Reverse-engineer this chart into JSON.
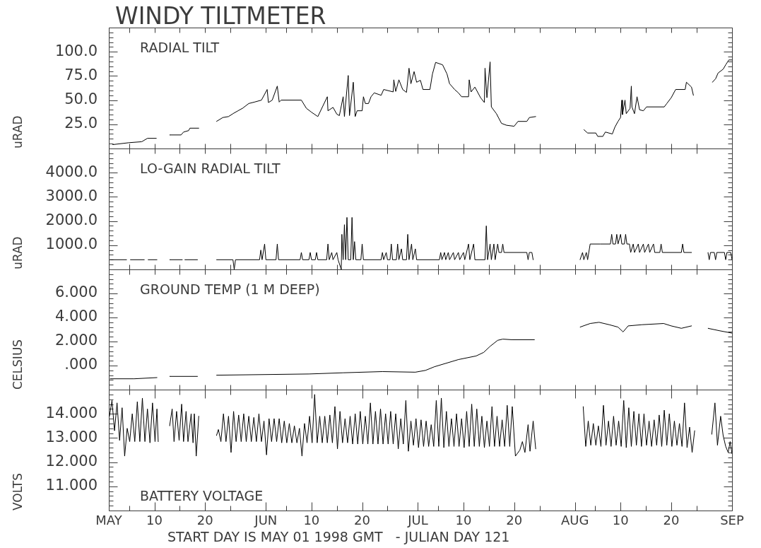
{
  "chart_data": [
    {
      "type": "line",
      "title": "WINDY TILTMETER",
      "subtitle": "RADIAL TILT",
      "ylabel": "uRAD",
      "color": "#000000",
      "tick_labels": "y",
      "xlim": [
        "1998-05-01",
        "1998-09-01"
      ],
      "xticks": [
        {
          "value": "1998-05-01",
          "label": null
        },
        {
          "value": "1998-05-05",
          "label": null
        },
        {
          "value": "1998-05-10",
          "label": null
        },
        {
          "value": "1998-05-15",
          "label": null
        },
        {
          "value": "1998-05-20",
          "label": null
        },
        {
          "value": "1998-05-25",
          "label": null
        },
        {
          "value": "1998-06-01",
          "label": null
        },
        {
          "value": "1998-06-05",
          "label": null
        },
        {
          "value": "1998-06-10",
          "label": null
        },
        {
          "value": "1998-06-15",
          "label": null
        },
        {
          "value": "1998-06-20",
          "label": null
        },
        {
          "value": "1998-06-25",
          "label": null
        },
        {
          "value": "1998-07-01",
          "label": null
        },
        {
          "value": "1998-07-05",
          "label": null
        },
        {
          "value": "1998-07-10",
          "label": null
        },
        {
          "value": "1998-07-15",
          "label": null
        },
        {
          "value": "1998-07-20",
          "label": null
        },
        {
          "value": "1998-07-25",
          "label": null
        },
        {
          "value": "1998-08-01",
          "label": null
        },
        {
          "value": "1998-08-05",
          "label": null
        },
        {
          "value": "1998-08-10",
          "label": null
        },
        {
          "value": "1998-08-15",
          "label": null
        },
        {
          "value": "1998-08-20",
          "label": null
        },
        {
          "value": "1998-08-25",
          "label": null
        },
        {
          "value": "1998-09-01",
          "label": null
        }
      ],
      "ylim": [
        0,
        125
      ],
      "yticks": [
        {
          "value": 0,
          "label": null
        },
        {
          "value": 5,
          "label": null
        },
        {
          "value": 10,
          "label": null
        },
        {
          "value": 15,
          "label": null
        },
        {
          "value": 20,
          "label": null
        },
        {
          "value": 25,
          "label": "25.0"
        },
        {
          "value": 30,
          "label": null
        },
        {
          "value": 35,
          "label": null
        },
        {
          "value": 40,
          "label": null
        },
        {
          "value": 45,
          "label": null
        },
        {
          "value": 50,
          "label": "50.0"
        },
        {
          "value": 55,
          "label": null
        },
        {
          "value": 60,
          "label": null
        },
        {
          "value": 65,
          "label": null
        },
        {
          "value": 70,
          "label": null
        },
        {
          "value": 75,
          "label": "75.0"
        },
        {
          "value": 80,
          "label": null
        },
        {
          "value": 85,
          "label": null
        },
        {
          "value": 90,
          "label": null
        },
        {
          "value": 95,
          "label": null
        },
        {
          "value": 100,
          "label": "100.0"
        },
        {
          "value": 105,
          "label": null
        },
        {
          "value": 110,
          "label": null
        },
        {
          "value": 115,
          "label": null
        },
        {
          "value": 120,
          "label": null
        },
        {
          "value": 125,
          "label": null
        }
      ],
      "x": [
        "1998-05-01T18:00",
        "1998-05-05T00:00",
        "1998-05-07T12:00",
        "1998-05-08T15:00",
        "1998-05-10T09:00",
        "1998-05-11T12:00",
        "1998-05-13T00:00",
        "1998-05-15T06:00",
        "1998-05-15T18:00",
        "1998-05-16T18:00",
        "1998-05-17T00:00",
        "1998-05-18T18:00",
        "1998-05-20T00:00",
        "1998-05-22T06:00",
        "1998-05-23T12:00",
        "1998-05-24T15:00",
        "1998-05-25T12:00",
        "1998-05-26T12:00",
        "1998-05-27T09:00",
        "1998-05-28T15:00",
        "1998-05-29T18:00",
        "1998-05-31T03:00",
        "1998-06-01T06:00",
        "1998-06-01T12:00",
        "1998-06-02T06:00",
        "1998-06-03T06:00",
        "1998-06-03T15:00",
        "1998-06-04T00:00",
        "1998-06-08T00:00",
        "1998-06-09T00:00",
        "1998-06-10T00:00",
        "1998-06-11T06:00",
        "1998-06-13T03:00",
        "1998-06-13T06:00",
        "1998-06-14T06:00",
        "1998-06-15T00:00",
        "1998-06-15T12:00",
        "1998-06-16T06:00",
        "1998-06-16T12:00",
        "1998-06-17T06:00",
        "1998-06-17T12:00",
        "1998-06-18T06:00",
        "1998-06-18T15:00",
        "1998-06-19T00:00",
        "1998-06-20T00:00",
        "1998-06-20T06:00",
        "1998-06-20T15:00",
        "1998-06-21T06:00",
        "1998-06-21T18:00",
        "1998-06-22T09:00",
        "1998-06-23T18:00",
        "1998-06-24T06:00",
        "1998-06-26T03:00",
        "1998-06-26T06:00",
        "1998-06-26T15:00",
        "1998-06-27T06:00",
        "1998-06-28T00:00",
        "1998-06-28T18:00",
        "1998-06-29T06:00",
        "1998-06-29T15:00",
        "1998-06-30T06:00",
        "1998-06-30T18:00",
        "1998-07-01T12:00",
        "1998-07-02T00:00",
        "1998-07-03T09:00",
        "1998-07-03T21:00",
        "1998-07-04T12:00",
        "1998-07-05T21:00",
        "1998-07-06T18:00",
        "1998-07-07T06:00",
        "1998-07-08T06:00",
        "1998-07-09T00:00",
        "1998-07-09T15:00",
        "1998-07-11T00:00",
        "1998-07-11T03:00",
        "1998-07-11T12:00",
        "1998-07-12T06:00",
        "1998-07-13T09:00",
        "1998-07-14T03:00",
        "1998-07-14T06:00",
        "1998-07-14T15:00",
        "1998-07-15T06:00",
        "1998-07-15T12:00",
        "1998-07-16T12:00",
        "1998-07-17T12:00",
        "1998-07-18T12:00",
        "1998-07-20T00:00",
        "1998-07-20T18:00",
        "1998-07-22T12:00",
        "1998-07-23T00:00",
        "1998-07-24T06:00",
        "1998-07-28T00:00",
        "1998-08-02T18:00",
        "1998-08-03T12:00",
        "1998-08-05T03:00",
        "1998-08-05T12:00",
        "1998-08-06T12:00",
        "1998-08-07T00:00",
        "1998-08-08T09:00",
        "1998-08-08T21:00",
        "1998-08-09T12:00",
        "1998-08-10T00:00",
        "1998-08-10T06:00",
        "1998-08-10T09:00",
        "1998-08-10T21:00",
        "1998-08-11T03:00",
        "1998-08-11T21:00",
        "1998-08-12T03:00",
        "1998-08-12T06:00",
        "1998-08-12T18:00",
        "1998-08-13T06:00",
        "1998-08-13T18:00",
        "1998-08-14T12:00",
        "1998-08-15T03:00",
        "1998-08-18T15:00",
        "1998-08-19T03:00",
        "1998-08-20T00:00",
        "1998-08-20T21:00",
        "1998-08-22T18:00",
        "1998-08-23T00:00",
        "1998-08-24T00:00",
        "1998-08-24T09:00",
        "1998-08-25T12:00",
        "1998-08-28T03:00",
        "1998-08-28T18:00",
        "1998-08-29T06:00",
        "1998-08-30T06:00",
        "1998-08-30T18:00",
        "1998-08-31T09:00",
        "1998-09-01T00:00"
      ],
      "values": [
        4,
        6,
        7,
        10.5,
        10.5,
        null,
        14,
        14,
        17,
        18.5,
        21,
        21,
        null,
        28,
        32,
        33,
        36,
        39,
        41.5,
        46.5,
        48,
        50,
        61,
        47.5,
        50,
        64.5,
        48,
        50,
        50,
        41.5,
        37.5,
        33,
        53.5,
        39,
        42.5,
        35.5,
        34,
        53.5,
        33,
        75.5,
        34,
        68.5,
        33,
        39,
        39,
        53.5,
        46.5,
        46.5,
        53.5,
        57.5,
        55,
        61,
        58.5,
        71,
        59,
        71,
        61,
        58,
        83,
        67,
        79.5,
        68.5,
        70.5,
        61,
        61,
        77,
        89,
        86.5,
        77,
        67,
        61,
        57.5,
        53.5,
        53.5,
        71,
        58.5,
        63.5,
        52.5,
        47.5,
        83,
        52.5,
        89.5,
        43,
        36,
        26,
        24,
        23,
        28,
        28,
        32,
        33,
        null,
        19.5,
        16,
        16,
        12.5,
        12.5,
        17,
        15,
        22,
        28,
        32,
        50,
        35,
        50,
        36,
        41.5,
        64.5,
        43,
        36,
        53.5,
        40,
        39,
        43,
        43,
        46.5,
        52.5,
        61,
        61,
        68.5,
        63.5,
        55,
        null,
        68.5,
        72,
        78,
        82,
        86.5,
        91.5,
        91.5
      ]
    },
    {
      "type": "line",
      "subtitle": "LO-GAIN RADIAL TILT",
      "ylabel": "uRAD",
      "color": "#000000",
      "tick_labels": "y",
      "xlim": [
        "1998-05-01",
        "1998-09-01"
      ],
      "xticks": [
        {
          "value": "1998-05-01",
          "label": null
        },
        {
          "value": "1998-05-05",
          "label": null
        },
        {
          "value": "1998-05-10",
          "label": null
        },
        {
          "value": "1998-05-15",
          "label": null
        },
        {
          "value": "1998-05-20",
          "label": null
        },
        {
          "value": "1998-05-25",
          "label": null
        },
        {
          "value": "1998-06-01",
          "label": null
        },
        {
          "value": "1998-06-05",
          "label": null
        },
        {
          "value": "1998-06-10",
          "label": null
        },
        {
          "value": "1998-06-15",
          "label": null
        },
        {
          "value": "1998-06-20",
          "label": null
        },
        {
          "value": "1998-06-25",
          "label": null
        },
        {
          "value": "1998-07-01",
          "label": null
        },
        {
          "value": "1998-07-05",
          "label": null
        },
        {
          "value": "1998-07-10",
          "label": null
        },
        {
          "value": "1998-07-15",
          "label": null
        },
        {
          "value": "1998-07-20",
          "label": null
        },
        {
          "value": "1998-07-25",
          "label": null
        },
        {
          "value": "1998-08-01",
          "label": null
        },
        {
          "value": "1998-08-05",
          "label": null
        },
        {
          "value": "1998-08-10",
          "label": null
        },
        {
          "value": "1998-08-15",
          "label": null
        },
        {
          "value": "1998-08-20",
          "label": null
        },
        {
          "value": "1998-08-25",
          "label": null
        },
        {
          "value": "1998-09-01",
          "label": null
        }
      ],
      "ylim": [
        0,
        5000
      ],
      "yticks": [
        {
          "value": 0,
          "label": null
        },
        {
          "value": 200,
          "label": null
        },
        {
          "value": 400,
          "label": null
        },
        {
          "value": 600,
          "label": null
        },
        {
          "value": 800,
          "label": null
        },
        {
          "value": 1000,
          "label": "1000.0"
        },
        {
          "value": 1200,
          "label": null
        },
        {
          "value": 1400,
          "label": null
        },
        {
          "value": 1600,
          "label": null
        },
        {
          "value": 1800,
          "label": null
        },
        {
          "value": 2000,
          "label": "2000.0"
        },
        {
          "value": 2200,
          "label": null
        },
        {
          "value": 2400,
          "label": null
        },
        {
          "value": 2600,
          "label": null
        },
        {
          "value": 2800,
          "label": null
        },
        {
          "value": 3000,
          "label": "3000.0"
        },
        {
          "value": 3200,
          "label": null
        },
        {
          "value": 3400,
          "label": null
        },
        {
          "value": 3600,
          "label": null
        },
        {
          "value": 3800,
          "label": null
        },
        {
          "value": 4000,
          "label": "4000.0"
        },
        {
          "value": 4200,
          "label": null
        },
        {
          "value": 4400,
          "label": null
        },
        {
          "value": 4600,
          "label": null
        },
        {
          "value": 4800,
          "label": null
        },
        {
          "value": 5000,
          "label": null
        }
      ],
      "x": [
        "1998-05-01T06:00",
        "1998-05-04T12:00",
        "1998-05-04T18:00",
        "1998-05-05T06:00",
        "1998-05-08T00:00",
        "1998-05-08T06:00",
        "1998-05-08T18:00",
        "1998-05-10T12:00",
        "1998-05-11T12:00",
        "1998-05-13T00:00",
        "1998-05-15T12:00",
        "1998-05-15T18:00",
        "1998-05-16T00:00",
        "1998-05-18T12:00",
        "1998-05-20T00:00",
        "1998-05-22T06:00",
        "1998-05-25T12:00",
        "1998-05-25T18:00",
        "1998-05-26T00:00",
        "1998-05-30T18:00",
        "1998-05-31T00:00",
        "1998-05-31T06:00",
        "1998-05-31T18:00",
        "1998-06-01T00:00",
        "1998-06-03T00:00",
        "1998-06-03T06:00",
        "1998-06-03T12:00",
        "1998-06-07T18:00",
        "1998-06-08T00:00",
        "1998-06-08T06:00",
        "1998-06-09T12:00",
        "1998-06-09T18:00",
        "1998-06-10T00:00",
        "1998-06-10T18:00",
        "1998-06-11T00:00",
        "1998-06-11T06:00",
        "1998-06-13T00:00",
        "1998-06-13T06:00",
        "1998-06-13T12:00",
        "1998-06-14T00:00",
        "1998-06-14T06:00",
        "1998-06-15T00:00",
        "1998-06-15T06:00",
        "1998-06-15T21:00",
        "1998-06-16T00:00",
        "1998-06-16T06:00",
        "1998-06-16T12:00",
        "1998-06-16T18:00",
        "1998-06-17T00:00",
        "1998-06-17T06:00",
        "1998-06-17T18:00",
        "1998-06-18T00:00",
        "1998-06-18T06:00",
        "1998-06-18T12:00",
        "1998-06-18T18:00",
        "1998-06-19T18:00",
        "1998-06-20T00:00",
        "1998-06-20T06:00",
        "1998-06-23T18:00",
        "1998-06-24T00:00",
        "1998-06-24T06:00",
        "1998-06-24T18:00",
        "1998-06-25T00:00",
        "1998-06-25T12:00",
        "1998-06-25T18:00",
        "1998-06-26T00:00",
        "1998-06-26T18:00",
        "1998-06-27T00:00",
        "1998-06-27T06:00",
        "1998-06-27T18:00",
        "1998-06-28T00:00",
        "1998-06-28T18:00",
        "1998-06-29T00:00",
        "1998-06-29T06:00",
        "1998-06-29T18:00",
        "1998-06-30T00:00",
        "1998-06-30T12:00",
        "1998-06-30T18:00",
        "1998-07-05T06:00",
        "1998-07-05T12:00",
        "1998-07-05T18:00",
        "1998-07-06T06:00",
        "1998-07-06T12:00",
        "1998-07-07T00:00",
        "1998-07-07T06:00",
        "1998-07-08T00:00",
        "1998-07-08T06:00",
        "1998-07-09T00:00",
        "1998-07-09T06:00",
        "1998-07-10T00:00",
        "1998-07-10T06:00",
        "1998-07-11T00:00",
        "1998-07-11T06:00",
        "1998-07-12T00:00",
        "1998-07-12T06:00",
        "1998-07-14T06:00",
        "1998-07-14T12:00",
        "1998-07-14T18:00",
        "1998-07-15T06:00",
        "1998-07-15T12:00",
        "1998-07-16T00:00",
        "1998-07-16T06:00",
        "1998-07-16T18:00",
        "1998-07-17T00:00",
        "1998-07-17T12:00",
        "1998-07-17T18:00",
        "1998-07-18T00:00",
        "1998-07-22T12:00",
        "1998-07-22T18:00",
        "1998-07-23T00:00",
        "1998-07-23T12:00",
        "1998-07-23T18:00",
        "1998-07-26T00:00",
        "1998-08-02T00:00",
        "1998-08-02T12:00",
        "1998-08-02T18:00",
        "1998-08-03T06:00",
        "1998-08-03T12:00",
        "1998-08-04T00:00",
        "1998-08-06T00:00",
        "1998-08-08T00:00",
        "1998-08-08T06:00",
        "1998-08-08T12:00",
        "1998-08-09T00:00",
        "1998-08-09T06:00",
        "1998-08-09T12:00",
        "1998-08-10T00:00",
        "1998-08-10T06:00",
        "1998-08-10T18:00",
        "1998-08-11T00:00",
        "1998-08-11T06:00",
        "1998-08-11T18:00",
        "1998-08-12T00:00",
        "1998-08-12T12:00",
        "1998-08-12T18:00",
        "1998-08-13T12:00",
        "1998-08-13T18:00",
        "1998-08-14T12:00",
        "1998-08-14T18:00",
        "1998-08-15T12:00",
        "1998-08-15T18:00",
        "1998-08-16T12:00",
        "1998-08-16T18:00",
        "1998-08-17T18:00",
        "1998-08-18T00:00",
        "1998-08-18T06:00",
        "1998-08-22T00:00",
        "1998-08-22T06:00",
        "1998-08-22T12:00",
        "1998-08-24T00:00",
        "1998-08-25T00:00",
        "1998-08-27T06:00",
        "1998-08-27T12:00",
        "1998-08-27T18:00",
        "1998-08-28T12:00",
        "1998-08-28T18:00",
        "1998-08-29T00:00",
        "1998-08-30T12:00",
        "1998-08-30T18:00",
        "1998-08-31T00:00",
        "1998-08-31T18:00",
        "1998-09-01T00:00"
      ],
      "values": [
        400,
        400,
        null,
        400,
        400,
        null,
        400,
        400,
        null,
        400,
        400,
        null,
        400,
        400,
        null,
        400,
        400,
        0,
        400,
        400,
        800,
        400,
        1050,
        400,
        400,
        1050,
        400,
        400,
        700,
        400,
        400,
        700,
        400,
        400,
        700,
        400,
        400,
        1050,
        400,
        700,
        400,
        700,
        400,
        0,
        1450,
        400,
        1850,
        400,
        2150,
        400,
        400,
        2150,
        400,
        1150,
        400,
        400,
        1050,
        400,
        400,
        700,
        400,
        700,
        400,
        400,
        1050,
        400,
        400,
        1050,
        400,
        850,
        400,
        400,
        1450,
        400,
        1050,
        400,
        850,
        400,
        400,
        700,
        400,
        700,
        400,
        700,
        400,
        700,
        400,
        700,
        400,
        700,
        400,
        1050,
        400,
        1050,
        400,
        400,
        1800,
        400,
        1050,
        400,
        1050,
        400,
        1050,
        700,
        700,
        1050,
        700,
        700,
        400,
        700,
        700,
        400,
        null,
        400,
        700,
        400,
        700,
        400,
        1050,
        1050,
        1050,
        1450,
        1050,
        1050,
        1450,
        1050,
        1450,
        1050,
        1050,
        1450,
        1050,
        1050,
        700,
        1050,
        700,
        1050,
        700,
        1050,
        700,
        1050,
        700,
        1050,
        700,
        700,
        1050,
        700,
        700,
        1050,
        700,
        700,
        null,
        700,
        400,
        700,
        700,
        400,
        700,
        700,
        400,
        700,
        700,
        400
      ]
    },
    {
      "type": "line",
      "subtitle": "GROUND TEMP (1 M DEEP)",
      "ylabel": "CELSIUS",
      "color": "#000000",
      "tick_labels": "y",
      "xlim": [
        "1998-05-01",
        "1998-09-01"
      ],
      "xticks": [
        {
          "value": "1998-05-01",
          "label": null
        },
        {
          "value": "1998-05-05",
          "label": null
        },
        {
          "value": "1998-05-10",
          "label": null
        },
        {
          "value": "1998-05-15",
          "label": null
        },
        {
          "value": "1998-05-20",
          "label": null
        },
        {
          "value": "1998-05-25",
          "label": null
        },
        {
          "value": "1998-06-01",
          "label": null
        },
        {
          "value": "1998-06-05",
          "label": null
        },
        {
          "value": "1998-06-10",
          "label": null
        },
        {
          "value": "1998-06-15",
          "label": null
        },
        {
          "value": "1998-06-20",
          "label": null
        },
        {
          "value": "1998-06-25",
          "label": null
        },
        {
          "value": "1998-07-01",
          "label": null
        },
        {
          "value": "1998-07-05",
          "label": null
        },
        {
          "value": "1998-07-10",
          "label": null
        },
        {
          "value": "1998-07-15",
          "label": null
        },
        {
          "value": "1998-07-20",
          "label": null
        },
        {
          "value": "1998-07-25",
          "label": null
        },
        {
          "value": "1998-08-01",
          "label": null
        },
        {
          "value": "1998-08-05",
          "label": null
        },
        {
          "value": "1998-08-10",
          "label": null
        },
        {
          "value": "1998-08-15",
          "label": null
        },
        {
          "value": "1998-08-20",
          "label": null
        },
        {
          "value": "1998-08-25",
          "label": null
        },
        {
          "value": "1998-09-01",
          "label": null
        }
      ],
      "ylim": [
        -2,
        8
      ],
      "yticks": [
        {
          "value": -2.0,
          "label": null
        },
        {
          "value": -1.6,
          "label": null
        },
        {
          "value": -1.2,
          "label": null
        },
        {
          "value": -0.8,
          "label": null
        },
        {
          "value": -0.4,
          "label": null
        },
        {
          "value": 0,
          "label": ".000"
        },
        {
          "value": 0.4,
          "label": null
        },
        {
          "value": 0.8,
          "label": null
        },
        {
          "value": 1.2,
          "label": null
        },
        {
          "value": 1.6,
          "label": null
        },
        {
          "value": 2.0,
          "label": "2.000"
        },
        {
          "value": 2.4,
          "label": null
        },
        {
          "value": 2.8,
          "label": null
        },
        {
          "value": 3.2,
          "label": null
        },
        {
          "value": 3.6,
          "label": null
        },
        {
          "value": 4.0,
          "label": "4.000"
        },
        {
          "value": 4.4,
          "label": null
        },
        {
          "value": 4.8,
          "label": null
        },
        {
          "value": 5.2,
          "label": null
        },
        {
          "value": 5.6,
          "label": null
        },
        {
          "value": 6.0,
          "label": "6.000"
        },
        {
          "value": 6.4,
          "label": null
        },
        {
          "value": 6.8,
          "label": null
        },
        {
          "value": 7.2,
          "label": null
        },
        {
          "value": 7.6,
          "label": null
        },
        {
          "value": 8.0,
          "label": null
        }
      ],
      "x": [
        "1998-05-01T06:00",
        "1998-05-06T00:00",
        "1998-05-10T12:00",
        "1998-05-11T12:00",
        "1998-05-13T00:00",
        "1998-05-18T12:00",
        "1998-05-20T00:00",
        "1998-05-22T06:00",
        "1998-06-09T12:00",
        "1998-06-16T06:00",
        "1998-06-24T00:00",
        "1998-06-30T12:00",
        "1998-07-02T12:00",
        "1998-07-04T06:00",
        "1998-07-09T00:00",
        "1998-07-12T12:00",
        "1998-07-14T00:00",
        "1998-07-15T06:00",
        "1998-07-16T18:00",
        "1998-07-17T18:00",
        "1998-07-19T12:00",
        "1998-07-24T00:00",
        "1998-07-28T00:00",
        "1998-08-02T00:00",
        "1998-08-04T00:00",
        "1998-08-05T18:00",
        "1998-08-07T18:00",
        "1998-08-09T12:00",
        "1998-08-10T12:00",
        "1998-08-11T12:00",
        "1998-08-14T06:00",
        "1998-08-18T12:00",
        "1998-08-20T00:00",
        "1998-08-22T00:00",
        "1998-08-24T00:00",
        "1998-08-25T12:00",
        "1998-08-27T06:00",
        "1998-08-29T12:00",
        "1998-09-01T00:00"
      ],
      "values": [
        -1.1,
        -1.1,
        -1.0,
        null,
        -0.9,
        -0.9,
        null,
        -0.8,
        -0.7,
        -0.6,
        -0.5,
        -0.55,
        -0.4,
        -0.1,
        0.5,
        0.8,
        1.1,
        1.6,
        2.1,
        2.2,
        2.15,
        2.15,
        null,
        3.2,
        3.5,
        3.6,
        3.4,
        3.2,
        2.8,
        3.3,
        3.4,
        3.5,
        3.3,
        3.1,
        3.3,
        null,
        3.1,
        2.9,
        2.7
      ]
    },
    {
      "type": "line",
      "subtitle": "BATTERY VOLTAGE",
      "ylabel": "VOLTS",
      "xlabel": "START DAY IS MAY 01 1998 GMT   - JULIAN DAY 121",
      "color": "#000000",
      "xlim": [
        "1998-05-01",
        "1998-09-01"
      ],
      "xticks": [
        {
          "value": "1998-05-01",
          "label": "MAY"
        },
        {
          "value": "1998-05-05",
          "label": null
        },
        {
          "value": "1998-05-10",
          "label": "10"
        },
        {
          "value": "1998-05-15",
          "label": null
        },
        {
          "value": "1998-05-20",
          "label": "20"
        },
        {
          "value": "1998-05-25",
          "label": null
        },
        {
          "value": "1998-06-01",
          "label": "JUN"
        },
        {
          "value": "1998-06-05",
          "label": null
        },
        {
          "value": "1998-06-10",
          "label": "10"
        },
        {
          "value": "1998-06-15",
          "label": null
        },
        {
          "value": "1998-06-20",
          "label": "20"
        },
        {
          "value": "1998-06-25",
          "label": null
        },
        {
          "value": "1998-07-01",
          "label": "JUL"
        },
        {
          "value": "1998-07-05",
          "label": null
        },
        {
          "value": "1998-07-10",
          "label": "10"
        },
        {
          "value": "1998-07-15",
          "label": null
        },
        {
          "value": "1998-07-20",
          "label": "20"
        },
        {
          "value": "1998-07-25",
          "label": null
        },
        {
          "value": "1998-08-01",
          "label": "AUG"
        },
        {
          "value": "1998-08-05",
          "label": null
        },
        {
          "value": "1998-08-10",
          "label": "10"
        },
        {
          "value": "1998-08-15",
          "label": null
        },
        {
          "value": "1998-08-20",
          "label": "20"
        },
        {
          "value": "1998-08-25",
          "label": null
        },
        {
          "value": "1998-09-01",
          "label": "SEP"
        }
      ],
      "ylim": [
        10,
        15
      ],
      "yticks": [
        {
          "value": 10.0,
          "label": null
        },
        {
          "value": 10.2,
          "label": null
        },
        {
          "value": 10.4,
          "label": null
        },
        {
          "value": 10.6,
          "label": null
        },
        {
          "value": 10.8,
          "label": null
        },
        {
          "value": 11.0,
          "label": "11.000"
        },
        {
          "value": 11.2,
          "label": null
        },
        {
          "value": 11.4,
          "label": null
        },
        {
          "value": 11.6,
          "label": null
        },
        {
          "value": 11.8,
          "label": null
        },
        {
          "value": 12.0,
          "label": "12.000"
        },
        {
          "value": 12.2,
          "label": null
        },
        {
          "value": 12.4,
          "label": null
        },
        {
          "value": 12.6,
          "label": null
        },
        {
          "value": 12.8,
          "label": null
        },
        {
          "value": 13.0,
          "label": "13.000"
        },
        {
          "value": 13.2,
          "label": null
        },
        {
          "value": 13.4,
          "label": null
        },
        {
          "value": 13.6,
          "label": null
        },
        {
          "value": 13.8,
          "label": null
        },
        {
          "value": 14.0,
          "label": "14.000"
        },
        {
          "value": 14.2,
          "label": null
        },
        {
          "value": 14.4,
          "label": null
        },
        {
          "value": 14.6,
          "label": null
        },
        {
          "value": 14.8,
          "label": null
        },
        {
          "value": 15.0,
          "label": null
        }
      ],
      "x": [
        "1998-05-01T03:00",
        "1998-05-01T15:00",
        "1998-05-02T03:00",
        "1998-05-02T15:00",
        "1998-05-03T03:00",
        "1998-05-03T15:00",
        "1998-05-04T03:00",
        "1998-05-04T15:00",
        "1998-05-05T03:00",
        "1998-05-05T15:00",
        "1998-05-06T03:00",
        "1998-05-06T15:00",
        "1998-05-07T03:00",
        "1998-05-07T15:00",
        "1998-05-08T03:00",
        "1998-05-08T15:00",
        "1998-05-09T03:00",
        "1998-05-09T15:00",
        "1998-05-10T03:00",
        "1998-05-10T12:00",
        "1998-05-10T18:00",
        "1998-05-11T12:00",
        "1998-05-13T00:00",
        "1998-05-13T12:00",
        "1998-05-13T21:00",
        "1998-05-14T09:00",
        "1998-05-14T21:00",
        "1998-05-15T09:00",
        "1998-05-15T18:00",
        "1998-05-16T06:00",
        "1998-05-16T15:00",
        "1998-05-17T06:00",
        "1998-05-17T15:00",
        "1998-05-17T21:00",
        "1998-05-18T06:00",
        "1998-05-18T18:00",
        "1998-05-20T00:00",
        "1998-05-22T06:00",
        "1998-05-22T15:00",
        "1998-05-23T03:00",
        "1998-05-23T15:00",
        "1998-05-24T03:00",
        "1998-05-24T15:00",
        "1998-05-25T03:00",
        "1998-05-25T15:00",
        "1998-05-26T03:00",
        "1998-05-26T15:00",
        "1998-05-27T03:00",
        "1998-05-27T15:00",
        "1998-05-28T03:00",
        "1998-05-28T15:00",
        "1998-05-29T03:00",
        "1998-05-29T15:00",
        "1998-05-30T03:00",
        "1998-05-30T15:00",
        "1998-05-31T03:00",
        "1998-05-31T15:00",
        "1998-06-01T03:00",
        "1998-06-01T15:00",
        "1998-06-02T03:00",
        "1998-06-02T15:00",
        "1998-06-03T03:00",
        "1998-06-03T15:00",
        "1998-06-04T03:00",
        "1998-06-04T15:00",
        "1998-06-05T03:00",
        "1998-06-05T15:00",
        "1998-06-06T03:00",
        "1998-06-06T15:00",
        "1998-06-07T03:00",
        "1998-06-07T15:00",
        "1998-06-08T03:00",
        "1998-06-08T15:00",
        "1998-06-09T03:00",
        "1998-06-09T15:00",
        "1998-06-10T03:00",
        "1998-06-10T15:00",
        "1998-06-11T03:00",
        "1998-06-11T15:00",
        "1998-06-12T03:00",
        "1998-06-12T15:00",
        "1998-06-13T03:00",
        "1998-06-13T15:00",
        "1998-06-14T03:00",
        "1998-06-14T15:00",
        "1998-06-15T03:00",
        "1998-06-15T15:00",
        "1998-06-16T03:00",
        "1998-06-16T15:00",
        "1998-06-17T03:00",
        "1998-06-17T15:00",
        "1998-06-18T03:00",
        "1998-06-18T15:00",
        "1998-06-19T03:00",
        "1998-06-19T15:00",
        "1998-06-20T03:00",
        "1998-06-20T15:00",
        "1998-06-21T03:00",
        "1998-06-21T15:00",
        "1998-06-22T03:00",
        "1998-06-22T15:00",
        "1998-06-23T03:00",
        "1998-06-23T15:00",
        "1998-06-24T03:00",
        "1998-06-24T15:00",
        "1998-06-25T03:00",
        "1998-06-25T15:00",
        "1998-06-26T03:00",
        "1998-06-26T15:00",
        "1998-06-27T03:00",
        "1998-06-27T15:00",
        "1998-06-28T03:00",
        "1998-06-28T15:00",
        "1998-06-29T03:00",
        "1998-06-29T15:00",
        "1998-06-30T03:00",
        "1998-06-30T15:00",
        "1998-07-01T03:00",
        "1998-07-01T15:00",
        "1998-07-02T03:00",
        "1998-07-02T15:00",
        "1998-07-03T03:00",
        "1998-07-03T15:00",
        "1998-07-04T03:00",
        "1998-07-04T15:00",
        "1998-07-05T03:00",
        "1998-07-05T15:00",
        "1998-07-06T03:00",
        "1998-07-06T15:00",
        "1998-07-07T03:00",
        "1998-07-07T15:00",
        "1998-07-08T03:00",
        "1998-07-08T15:00",
        "1998-07-09T03:00",
        "1998-07-09T15:00",
        "1998-07-10T03:00",
        "1998-07-10T15:00",
        "1998-07-11T03:00",
        "1998-07-11T15:00",
        "1998-07-12T03:00",
        "1998-07-12T15:00",
        "1998-07-13T03:00",
        "1998-07-13T15:00",
        "1998-07-14T03:00",
        "1998-07-14T15:00",
        "1998-07-15T03:00",
        "1998-07-15T15:00",
        "1998-07-16T03:00",
        "1998-07-16T15:00",
        "1998-07-17T03:00",
        "1998-07-17T15:00",
        "1998-07-18T03:00",
        "1998-07-18T15:00",
        "1998-07-19T03:00",
        "1998-07-19T15:00",
        "1998-07-20T06:00",
        "1998-07-21T03:00",
        "1998-07-21T15:00",
        "1998-07-22T03:00",
        "1998-07-22T18:00",
        "1998-07-23T03:00",
        "1998-07-23T18:00",
        "1998-07-24T06:00",
        "1998-07-28T00:00",
        "1998-08-02T15:00",
        "1998-08-03T03:00",
        "1998-08-03T15:00",
        "1998-08-04T03:00",
        "1998-08-04T15:00",
        "1998-08-05T03:00",
        "1998-08-05T15:00",
        "1998-08-06T03:00",
        "1998-08-06T15:00",
        "1998-08-07T03:00",
        "1998-08-07T15:00",
        "1998-08-08T03:00",
        "1998-08-08T15:00",
        "1998-08-09T03:00",
        "1998-08-09T15:00",
        "1998-08-10T03:00",
        "1998-08-10T15:00",
        "1998-08-11T03:00",
        "1998-08-11T15:00",
        "1998-08-12T03:00",
        "1998-08-12T15:00",
        "1998-08-13T03:00",
        "1998-08-13T15:00",
        "1998-08-14T03:00",
        "1998-08-14T15:00",
        "1998-08-15T03:00",
        "1998-08-15T15:00",
        "1998-08-16T03:00",
        "1998-08-16T15:00",
        "1998-08-17T03:00",
        "1998-08-17T15:00",
        "1998-08-18T03:00",
        "1998-08-18T15:00",
        "1998-08-19T03:00",
        "1998-08-19T15:00",
        "1998-08-20T03:00",
        "1998-08-20T15:00",
        "1998-08-21T03:00",
        "1998-08-21T15:00",
        "1998-08-22T03:00",
        "1998-08-22T15:00",
        "1998-08-23T03:00",
        "1998-08-23T15:00",
        "1998-08-24T03:00",
        "1998-08-24T15:00",
        "1998-08-25T12:00",
        "1998-08-28T00:00",
        "1998-08-28T15:00",
        "1998-08-29T03:00",
        "1998-08-29T18:00",
        "1998-08-30T06:00",
        "1998-08-30T18:00",
        "1998-08-31T06:00",
        "1998-08-31T15:00",
        "1998-09-01T00:00"
      ],
      "values": [
        13.9,
        14.55,
        13.3,
        14.45,
        12.9,
        14.25,
        12.25,
        13.4,
        12.85,
        14.0,
        12.85,
        14.5,
        12.85,
        14.65,
        12.85,
        14.2,
        12.8,
        14.45,
        12.85,
        14.2,
        12.85,
        null,
        13.5,
        14.2,
        12.85,
        14.1,
        12.9,
        14.4,
        12.85,
        14.1,
        12.85,
        14.0,
        12.8,
        14.0,
        12.25,
        13.9,
        null,
        13.1,
        13.35,
        12.85,
        14.0,
        12.85,
        13.9,
        12.4,
        14.1,
        12.85,
        13.95,
        12.85,
        14.0,
        12.85,
        13.9,
        12.85,
        13.85,
        12.85,
        14.0,
        12.85,
        13.7,
        12.3,
        13.8,
        12.85,
        13.8,
        12.85,
        13.8,
        12.8,
        13.7,
        12.8,
        13.6,
        12.8,
        13.5,
        12.8,
        13.4,
        12.25,
        13.6,
        12.8,
        13.9,
        12.8,
        14.8,
        12.8,
        13.9,
        12.8,
        13.9,
        12.8,
        13.95,
        12.8,
        14.3,
        12.55,
        14.1,
        12.8,
        13.8,
        12.8,
        13.9,
        12.75,
        14.0,
        12.75,
        14.1,
        12.75,
        13.9,
        12.75,
        14.45,
        12.75,
        14.1,
        12.75,
        14.2,
        12.75,
        14.0,
        12.75,
        14.1,
        12.75,
        14.0,
        12.55,
        13.8,
        12.75,
        14.55,
        12.45,
        13.7,
        12.7,
        13.8,
        12.6,
        13.75,
        12.65,
        13.7,
        12.65,
        13.55,
        12.65,
        14.55,
        12.65,
        14.65,
        12.6,
        14.1,
        12.65,
        13.8,
        12.65,
        14.0,
        12.65,
        13.8,
        12.6,
        14.1,
        12.65,
        14.4,
        12.65,
        14.2,
        12.65,
        13.9,
        12.6,
        13.7,
        12.65,
        14.3,
        12.65,
        13.9,
        12.65,
        13.75,
        12.65,
        14.35,
        12.65,
        14.3,
        12.25,
        12.5,
        12.85,
        12.4,
        13.55,
        12.45,
        13.7,
        12.55,
        null,
        14.3,
        12.65,
        13.7,
        12.7,
        13.6,
        12.7,
        13.5,
        12.65,
        14.35,
        12.7,
        13.7,
        12.65,
        13.9,
        12.7,
        13.7,
        12.65,
        14.55,
        12.6,
        14.25,
        12.65,
        14.1,
        12.7,
        14.0,
        12.65,
        14.0,
        12.7,
        13.7,
        12.65,
        13.75,
        12.7,
        13.95,
        12.65,
        14.15,
        12.7,
        14.0,
        12.65,
        13.7,
        12.7,
        13.6,
        12.65,
        14.45,
        12.6,
        13.45,
        12.4,
        13.3,
        null,
        13.15,
        14.45,
        12.7,
        13.9,
        13.1,
        12.65,
        12.4,
        12.85,
        12.35
      ]
    }
  ]
}
